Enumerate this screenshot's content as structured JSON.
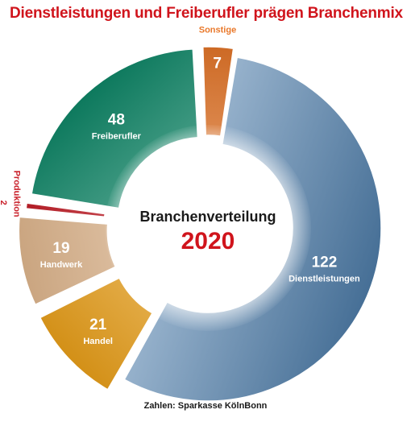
{
  "header": {
    "title": "Dienstleistungen und Freiberufler prägen Branchenmix"
  },
  "footer": {
    "source": "Zahlen: Sparkasse KölnBonn"
  },
  "chart_data": {
    "type": "pie",
    "variant": "donut",
    "title": "Dienstleistungen und Freiberufler prägen Branchenmix",
    "center_label": {
      "title": "Branchenverteilung",
      "year": "2020"
    },
    "slices": [
      {
        "key": "dienstleistungen",
        "label": "Dienstleistungen",
        "value": 122,
        "color": "#4f7eab",
        "label_position": "inside"
      },
      {
        "key": "handel",
        "label": "Handel",
        "value": 21,
        "color": "#f0a41a",
        "label_position": "inside"
      },
      {
        "key": "handwerk",
        "label": "Handwerk",
        "value": 19,
        "color": "#e6bc91",
        "label_position": "inside"
      },
      {
        "key": "produktion",
        "label": "Produktion",
        "value": 2,
        "color": "#c9202a",
        "label_position": "outside"
      },
      {
        "key": "freiberufler",
        "label": "Freiberufler",
        "value": 48,
        "color": "#0f8a6a",
        "label_position": "inside"
      },
      {
        "key": "sonstige",
        "label": "Sonstige",
        "value": 7,
        "color": "#e9782a",
        "label_position": "outside"
      }
    ],
    "source": "Zahlen: Sparkasse KölnBonn"
  }
}
